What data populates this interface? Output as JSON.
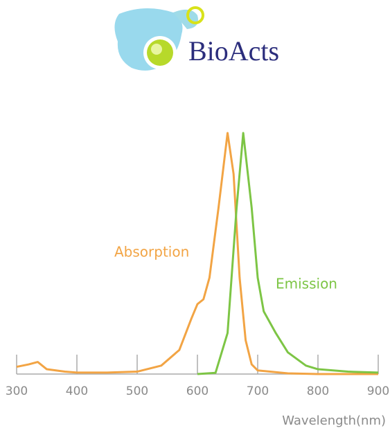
{
  "logo": "BioActs",
  "chart_data": {
    "type": "line",
    "xlabel": "Wavelength(nm)",
    "xlim": [
      300,
      900
    ],
    "xticks": [
      300,
      400,
      500,
      600,
      700,
      800,
      900
    ],
    "ylim": [
      0,
      1
    ],
    "series": [
      {
        "name": "Absorption",
        "color": "#f2a444",
        "x": [
          300,
          320,
          335,
          350,
          380,
          400,
          450,
          500,
          540,
          570,
          590,
          600,
          610,
          620,
          635,
          650,
          660,
          670,
          680,
          690,
          700,
          750,
          800,
          900
        ],
        "values": [
          0.03,
          0.04,
          0.05,
          0.02,
          0.01,
          0.006,
          0.006,
          0.01,
          0.035,
          0.1,
          0.23,
          0.29,
          0.31,
          0.4,
          0.69,
          1.0,
          0.83,
          0.4,
          0.14,
          0.04,
          0.015,
          0.003,
          0,
          0
        ]
      },
      {
        "name": "Emission",
        "color": "#7dc545",
        "x": [
          600,
          630,
          650,
          665,
          676,
          690,
          700,
          710,
          730,
          750,
          780,
          800,
          850,
          900
        ],
        "values": [
          0,
          0.005,
          0.17,
          0.69,
          1.0,
          0.69,
          0.4,
          0.26,
          0.17,
          0.09,
          0.035,
          0.02,
          0.01,
          0.006
        ]
      }
    ]
  }
}
